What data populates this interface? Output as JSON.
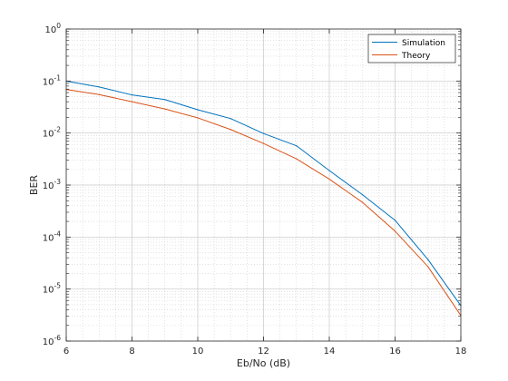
{
  "chart_data": {
    "type": "line",
    "title": "",
    "xlabel": "Eb/No (dB)",
    "ylabel": "BER",
    "xlim": [
      6,
      18
    ],
    "ylim": [
      1e-06,
      1
    ],
    "yscale": "log",
    "grid": true,
    "minor_grid": true,
    "legend_position": "top-right",
    "x": [
      6,
      7,
      8,
      9,
      10,
      11,
      12,
      13,
      14,
      15,
      16,
      17,
      18
    ],
    "x_ticks": [
      "6",
      "8",
      "10",
      "12",
      "14",
      "16",
      "18"
    ],
    "x_tick_values": [
      6,
      8,
      10,
      12,
      14,
      16,
      18
    ],
    "y_tick_values": [
      1e-06,
      1e-05,
      0.0001,
      0.001,
      0.01,
      0.1,
      1
    ],
    "y_tick_exponents": [
      "-6",
      "-5",
      "-4",
      "-3",
      "-2",
      "-1",
      "0"
    ],
    "y_tick_base": "10",
    "series": [
      {
        "name": "Simulation",
        "color": "#0072BD",
        "values": [
          0.1,
          0.077,
          0.054,
          0.044,
          0.028,
          0.019,
          0.0098,
          0.0057,
          0.0019,
          0.00066,
          0.00021,
          3.7e-05,
          4.8e-06
        ]
      },
      {
        "name": "Theory",
        "color": "#D95319",
        "values": [
          0.069,
          0.055,
          0.04,
          0.029,
          0.0196,
          0.0117,
          0.0063,
          0.0032,
          0.0013,
          0.00047,
          0.00013,
          2.7e-05,
          3.1e-06
        ]
      }
    ]
  }
}
